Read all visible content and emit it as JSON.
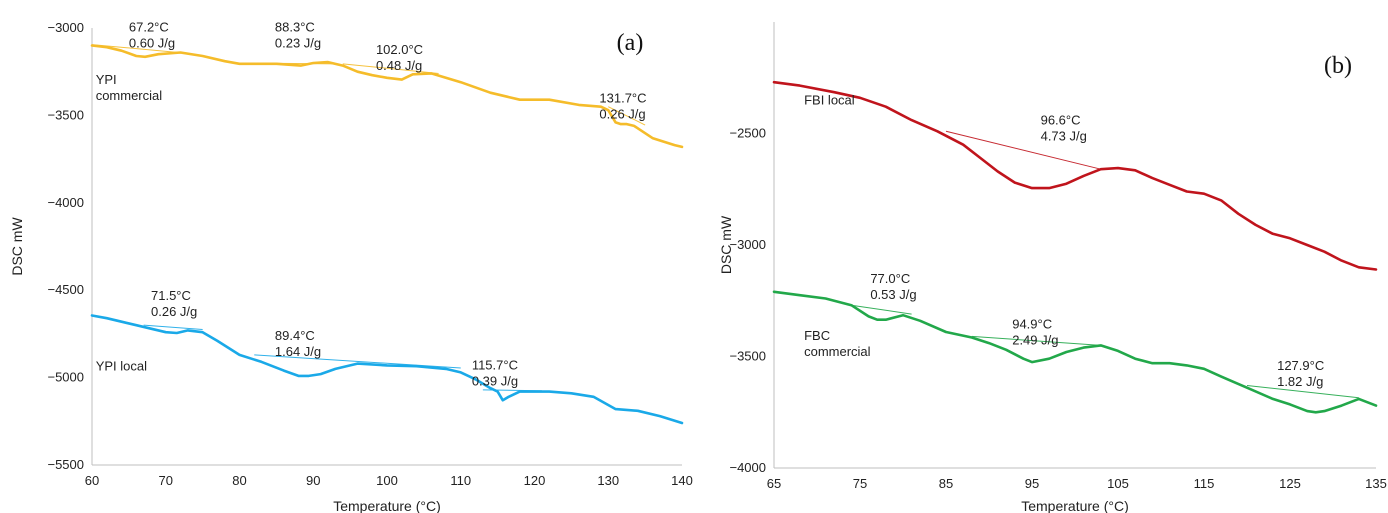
{
  "chart_data": [
    {
      "type": "line",
      "panel_label": "(a)",
      "xlabel": "Temperature (°C)",
      "ylabel": "DSC mW",
      "xlim": [
        60,
        140
      ],
      "ylim": [
        -5500,
        -3000
      ],
      "xticks": [
        60,
        70,
        80,
        90,
        100,
        110,
        120,
        130,
        140
      ],
      "yticks": [
        -5500,
        -5000,
        -4500,
        -4000,
        -3500,
        -3000
      ],
      "ytick_labels": [
        "−5500",
        "−5000",
        "−4500",
        "−4000",
        "−3500",
        "−3000"
      ],
      "grid": false,
      "series": [
        {
          "name": "YPI commercial",
          "color": "#f5bc2a",
          "label_at": [
            60.5,
            -3320
          ],
          "x": [
            60,
            62,
            64,
            66,
            67.2,
            69,
            72,
            75,
            78,
            80,
            82,
            85,
            88.3,
            90,
            92,
            94,
            96,
            98,
            100,
            102,
            103.5,
            106,
            110,
            114,
            118,
            122,
            126,
            129,
            130,
            131,
            131.7,
            132.5,
            133.5,
            136,
            139,
            140
          ],
          "y": [
            -3100,
            -3110,
            -3130,
            -3160,
            -3165,
            -3150,
            -3140,
            -3160,
            -3190,
            -3205,
            -3205,
            -3205,
            -3215,
            -3200,
            -3195,
            -3215,
            -3250,
            -3270,
            -3285,
            -3295,
            -3265,
            -3260,
            -3310,
            -3370,
            -3410,
            -3410,
            -3440,
            -3450,
            -3470,
            -3540,
            -3550,
            -3550,
            -3560,
            -3630,
            -3670,
            -3680
          ]
        },
        {
          "name": "YPI local",
          "color": "#1aa9e8",
          "label_at": [
            60.5,
            -4960
          ],
          "x": [
            60,
            62,
            64,
            66,
            68,
            70,
            71.5,
            73,
            75,
            77,
            80,
            83,
            86,
            88,
            89.4,
            91,
            93,
            96,
            100,
            104,
            108,
            110,
            112,
            114,
            115,
            115.7,
            116.5,
            118,
            120,
            122,
            125,
            128,
            131,
            134,
            137,
            140
          ],
          "y": [
            -4645,
            -4660,
            -4680,
            -4700,
            -4720,
            -4740,
            -4745,
            -4730,
            -4740,
            -4790,
            -4870,
            -4910,
            -4960,
            -4990,
            -4990,
            -4980,
            -4950,
            -4920,
            -4930,
            -4935,
            -4950,
            -4970,
            -5010,
            -5060,
            -5080,
            -5130,
            -5110,
            -5080,
            -5080,
            -5080,
            -5090,
            -5110,
            -5180,
            -5190,
            -5220,
            -5260
          ]
        }
      ],
      "annotations": [
        {
          "temp": "67.2°C",
          "energy": "0.60 J/g",
          "at": [
            65,
            -3020
          ],
          "baseline": [
            [
              60,
              -3095
            ],
            [
              73,
              -3145
            ]
          ]
        },
        {
          "temp": "88.3°C",
          "energy": "0.23 J/g",
          "at": [
            84.8,
            -3020
          ],
          "baseline": [
            [
              80,
              -3200
            ],
            [
              93,
              -3205
            ]
          ]
        },
        {
          "temp": "102.0°C",
          "energy": "0.48 J/g",
          "at": [
            98.5,
            -3150
          ],
          "baseline": [
            [
              94,
              -3205
            ],
            [
              107,
              -3260
            ]
          ]
        },
        {
          "temp": "131.7°C",
          "energy": "0.26 J/g",
          "at": [
            128.8,
            -3425
          ],
          "baseline": [
            [
              130,
              -3450
            ],
            [
              135,
              -3555
            ]
          ]
        },
        {
          "temp": "71.5°C",
          "energy": "0.26 J/g",
          "at": [
            68,
            -4555
          ],
          "baseline": [
            [
              67,
              -4700
            ],
            [
              75,
              -4725
            ]
          ]
        },
        {
          "temp": "89.4°C",
          "energy": "1.64 J/g",
          "at": [
            84.8,
            -4785
          ],
          "baseline": [
            [
              82,
              -4870
            ],
            [
              110,
              -4945
            ]
          ]
        },
        {
          "temp": "115.7°C",
          "energy": "0.39 J/g",
          "at": [
            111.5,
            -4955
          ],
          "baseline": [
            [
              113,
              -5070
            ],
            [
              121,
              -5075
            ]
          ]
        }
      ]
    },
    {
      "type": "line",
      "panel_label": "(b)",
      "xlabel": "Temperature (°C)",
      "ylabel": "DSC mW",
      "xlim": [
        65,
        135
      ],
      "ylim": [
        -4000,
        -2000
      ],
      "xticks": [
        65,
        75,
        85,
        95,
        105,
        115,
        125,
        135
      ],
      "yticks": [
        -4000,
        -3500,
        -3000,
        -2500
      ],
      "ytick_labels": [
        "−4000",
        "−3500",
        "−3000",
        "−2500"
      ],
      "grid": false,
      "series": [
        {
          "name": "FBI local",
          "color": "#c0141c",
          "label_at": [
            68.5,
            -2370
          ],
          "x": [
            65,
            68,
            72,
            75,
            78,
            81,
            84,
            87,
            89,
            91,
            93,
            95,
            97,
            99,
            101,
            103,
            105,
            107,
            109,
            111,
            113,
            115,
            117,
            119,
            121,
            123,
            125,
            127,
            129,
            131,
            133,
            135
          ],
          "y": [
            -2270,
            -2285,
            -2315,
            -2340,
            -2380,
            -2440,
            -2490,
            -2550,
            -2610,
            -2670,
            -2720,
            -2745,
            -2745,
            -2725,
            -2690,
            -2660,
            -2655,
            -2665,
            -2700,
            -2730,
            -2760,
            -2770,
            -2800,
            -2860,
            -2910,
            -2950,
            -2970,
            -3000,
            -3030,
            -3070,
            -3100,
            -3110
          ]
        },
        {
          "name": "FBC commercial",
          "color": "#22a84a",
          "label_at": [
            68.5,
            -3425
          ],
          "x": [
            65,
            68,
            71,
            74,
            76,
            77,
            78,
            80,
            82,
            85,
            88,
            90,
            92,
            94,
            95,
            97,
            99,
            101,
            103,
            105,
            107,
            109,
            111,
            113,
            115,
            117,
            120,
            123,
            125,
            127,
            128,
            129,
            131,
            133,
            135
          ],
          "y": [
            -3210,
            -3225,
            -3240,
            -3270,
            -3320,
            -3335,
            -3335,
            -3315,
            -3340,
            -3390,
            -3415,
            -3440,
            -3470,
            -3510,
            -3525,
            -3510,
            -3480,
            -3460,
            -3450,
            -3475,
            -3510,
            -3530,
            -3530,
            -3540,
            -3555,
            -3590,
            -3640,
            -3690,
            -3715,
            -3745,
            -3750,
            -3745,
            -3720,
            -3690,
            -3720
          ]
        }
      ],
      "annotations": [
        {
          "temp": "96.6°C",
          "energy": "4.73 J/g",
          "at": [
            96,
            -2460
          ],
          "baseline": [
            [
              85,
              -2490
            ],
            [
              103,
              -2660
            ]
          ]
        },
        {
          "temp": "77.0°C",
          "energy": "0.53 J/g",
          "at": [
            76.2,
            -3170
          ],
          "baseline": [
            [
              74,
              -3270
            ],
            [
              81,
              -3310
            ]
          ]
        },
        {
          "temp": "94.9°C",
          "energy": "2.49 J/g",
          "at": [
            92.7,
            -3375
          ],
          "baseline": [
            [
              88,
              -3410
            ],
            [
              103,
              -3450
            ]
          ]
        },
        {
          "temp": "127.9°C",
          "energy": "1.82 J/g",
          "at": [
            123.5,
            -3560
          ],
          "baseline": [
            [
              120,
              -3630
            ],
            [
              133,
              -3685
            ]
          ]
        }
      ]
    }
  ]
}
